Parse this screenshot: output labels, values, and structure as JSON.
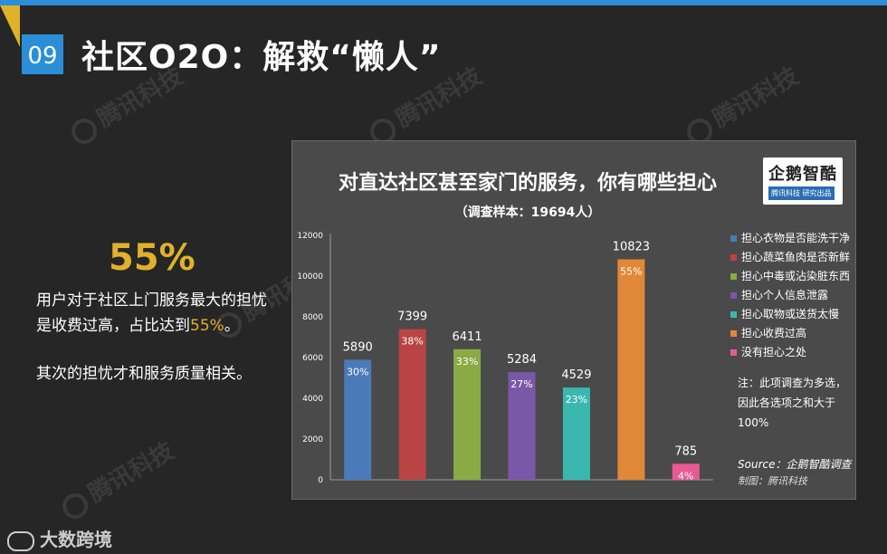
{
  "header": {
    "number": "09",
    "title": "社区O2O：解救“懒人”"
  },
  "watermark": "腾讯科技",
  "left": {
    "big_percent": "55%",
    "desc_before": "用户对于社区上门服务最大的担忧是收费过高，占比达到",
    "desc_highlight": "55%",
    "desc_after": "。",
    "desc2": "其次的担忧才和服务质量相关。"
  },
  "logo": {
    "title": "企鹅智酷",
    "sub": "腾讯科技 研究出品"
  },
  "chart_data": {
    "type": "bar",
    "title": "对直达社区甚至家门的服务，你有哪些担心",
    "subtitle": "（调查样本：19694人）",
    "categories": [
      "担心衣物是否能洗干净",
      "担心蔬菜鱼肉是否新鲜",
      "担心中毒或沾染脏东西",
      "担心个人信息泄露",
      "担心取物或送货太慢",
      "担心收费过高",
      "没有担心之处"
    ],
    "values": [
      5890,
      7399,
      6411,
      5284,
      4529,
      10823,
      785
    ],
    "percent_labels": [
      "30%",
      "38%",
      "33%",
      "27%",
      "23%",
      "55%",
      "4%"
    ],
    "colors": [
      "#4a7ab8",
      "#b84444",
      "#8aaa44",
      "#7a58a8",
      "#3ab8b0",
      "#e08838",
      "#e85a94"
    ],
    "ylim": [
      0,
      12000
    ],
    "yticks": [
      "0",
      "2000",
      "4000",
      "6000",
      "8000",
      "10000",
      "12000"
    ],
    "legend_position": "right",
    "note": "注：此项调查为多选，因此各选项之和大于100%",
    "source": "Source：企鹅智酷调查",
    "credit": "制图：腾讯科技"
  },
  "footer": {
    "brand": "大数跨境"
  }
}
